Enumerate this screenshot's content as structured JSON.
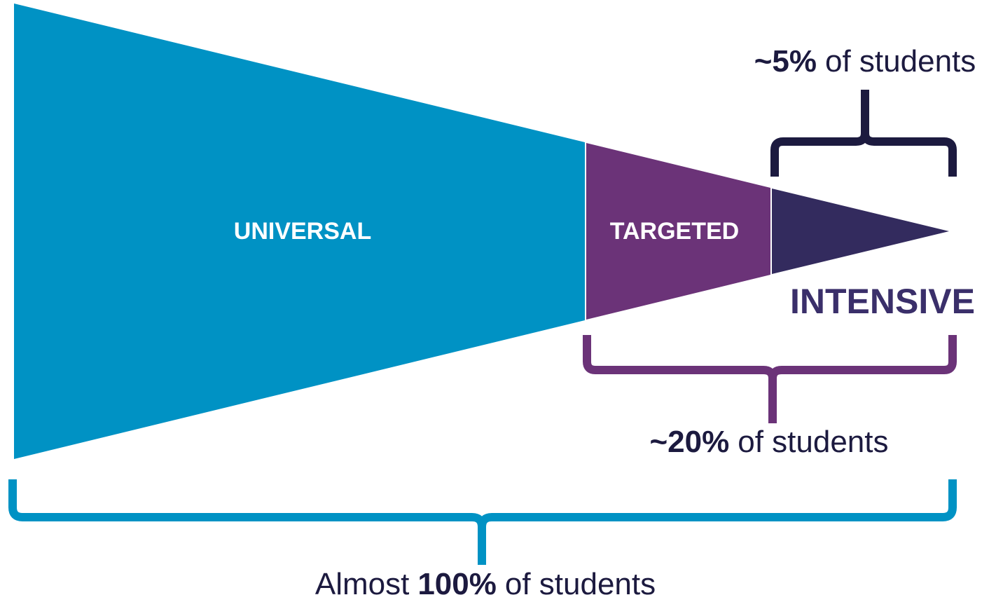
{
  "tiers": [
    {
      "label": "UNIVERSAL"
    },
    {
      "label": "TARGETED"
    },
    {
      "label": "INTENSIVE"
    }
  ],
  "brackets": [
    {
      "emphasis": "~5%",
      "suffix": "of students"
    },
    {
      "emphasis": "~20%",
      "suffix": "of students"
    },
    {
      "prefix": "Almost",
      "emphasis": "100%",
      "suffix": "of students"
    }
  ]
}
